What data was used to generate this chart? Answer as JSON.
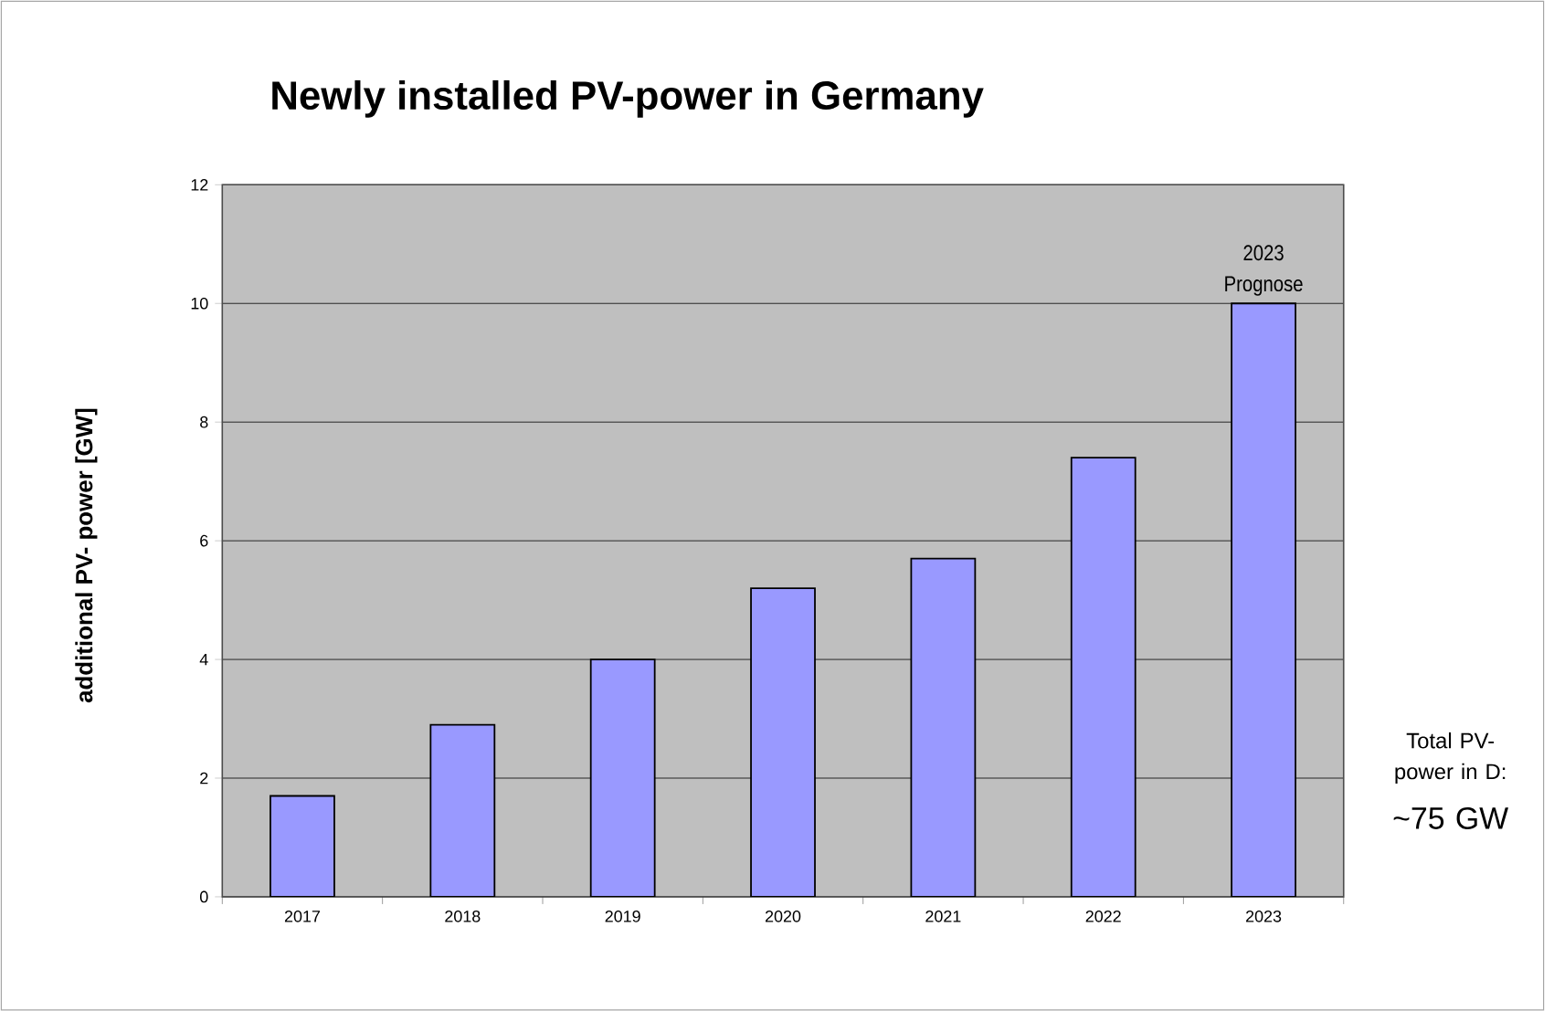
{
  "chart_data": {
    "type": "bar",
    "title": "Newly installed PV-power in Germany",
    "ylabel": "additional PV- power [GW]",
    "categories": [
      "2017",
      "2018",
      "2019",
      "2020",
      "2021",
      "2022",
      "2023"
    ],
    "values": [
      1.7,
      2.9,
      4.0,
      5.2,
      5.7,
      7.4,
      10.0
    ],
    "color": "#9999ff",
    "ylim": [
      0,
      12
    ],
    "yticks": [
      0,
      2,
      4,
      6,
      8,
      10,
      12
    ],
    "grid": "y",
    "annotations": [
      {
        "text": "2023 Prognose",
        "x": "2023",
        "y": 10
      },
      "Total PV-power in D:",
      "~75 GW"
    ]
  }
}
